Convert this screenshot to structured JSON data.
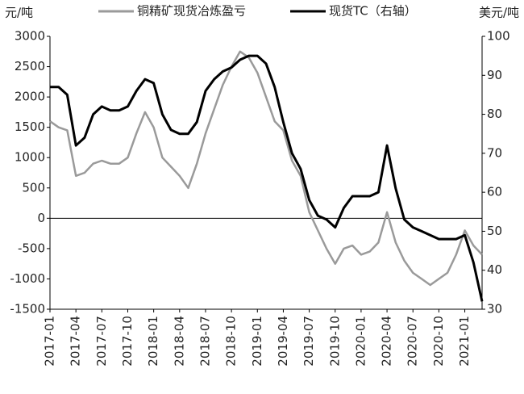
{
  "chart_data": {
    "type": "line",
    "y_label": "元/吨",
    "y2_label": "美元/吨",
    "x": [
      "2017-01",
      "2017-02",
      "2017-03",
      "2017-04",
      "2017-05",
      "2017-06",
      "2017-07",
      "2017-08",
      "2017-09",
      "2017-10",
      "2017-11",
      "2017-12",
      "2018-01",
      "2018-02",
      "2018-03",
      "2018-04",
      "2018-05",
      "2018-06",
      "2018-07",
      "2018-08",
      "2018-09",
      "2018-10",
      "2018-11",
      "2018-12",
      "2019-01",
      "2019-02",
      "2019-03",
      "2019-04",
      "2019-05",
      "2019-06",
      "2019-07",
      "2019-08",
      "2019-09",
      "2019-10",
      "2019-11",
      "2019-12",
      "2020-01",
      "2020-02",
      "2020-03",
      "2020-04",
      "2020-05",
      "2020-06",
      "2020-07",
      "2020-08",
      "2020-09",
      "2020-10",
      "2020-11",
      "2020-12",
      "2021-01",
      "2021-02",
      "2021-03"
    ],
    "series": [
      {
        "name": "铜精矿现货冶炼盈亏",
        "color": "#9a9a9a",
        "axis": "y",
        "values": [
          1600,
          1500,
          1450,
          700,
          750,
          900,
          950,
          900,
          900,
          1000,
          1400,
          1750,
          1500,
          1000,
          850,
          700,
          500,
          900,
          1400,
          1800,
          2200,
          2500,
          2750,
          2650,
          2400,
          2000,
          1600,
          1450,
          950,
          700,
          100,
          -200,
          -500,
          -750,
          -500,
          -450,
          -600,
          -550,
          -400,
          100,
          -400,
          -700,
          -900,
          -1000,
          -1100,
          -1000,
          -900,
          -600,
          -200,
          -450,
          -600
        ]
      },
      {
        "name": "现货TC（右轴）",
        "color": "#000000",
        "axis": "y2",
        "values": [
          87,
          87,
          85,
          72,
          74,
          80,
          82,
          81,
          81,
          82,
          86,
          89,
          88,
          80,
          76,
          75,
          75,
          78,
          86,
          89,
          91,
          92,
          94,
          95,
          95,
          93,
          87,
          78,
          70,
          66,
          58,
          54,
          53,
          51,
          56,
          59,
          59,
          59,
          60,
          72,
          61,
          53,
          51,
          50,
          49,
          48,
          48,
          48,
          49,
          42,
          32
        ]
      }
    ],
    "xlim": [
      "2017-01",
      "2021-03"
    ],
    "xticks": [
      "2017-01",
      "2017-04",
      "2017-07",
      "2017-10",
      "2018-01",
      "2018-04",
      "2018-07",
      "2018-10",
      "2019-01",
      "2019-04",
      "2019-07",
      "2019-10",
      "2020-01",
      "2020-04",
      "2020-07",
      "2020-10",
      "2021-01"
    ],
    "ylim": [
      -1500,
      3000
    ],
    "yticks": [
      -1500,
      -1000,
      -500,
      0,
      500,
      1000,
      1500,
      2000,
      2500,
      3000
    ],
    "y2lim": [
      30,
      100
    ],
    "y2ticks": [
      30,
      40,
      50,
      60,
      70,
      80,
      90,
      100
    ],
    "grid": false
  }
}
